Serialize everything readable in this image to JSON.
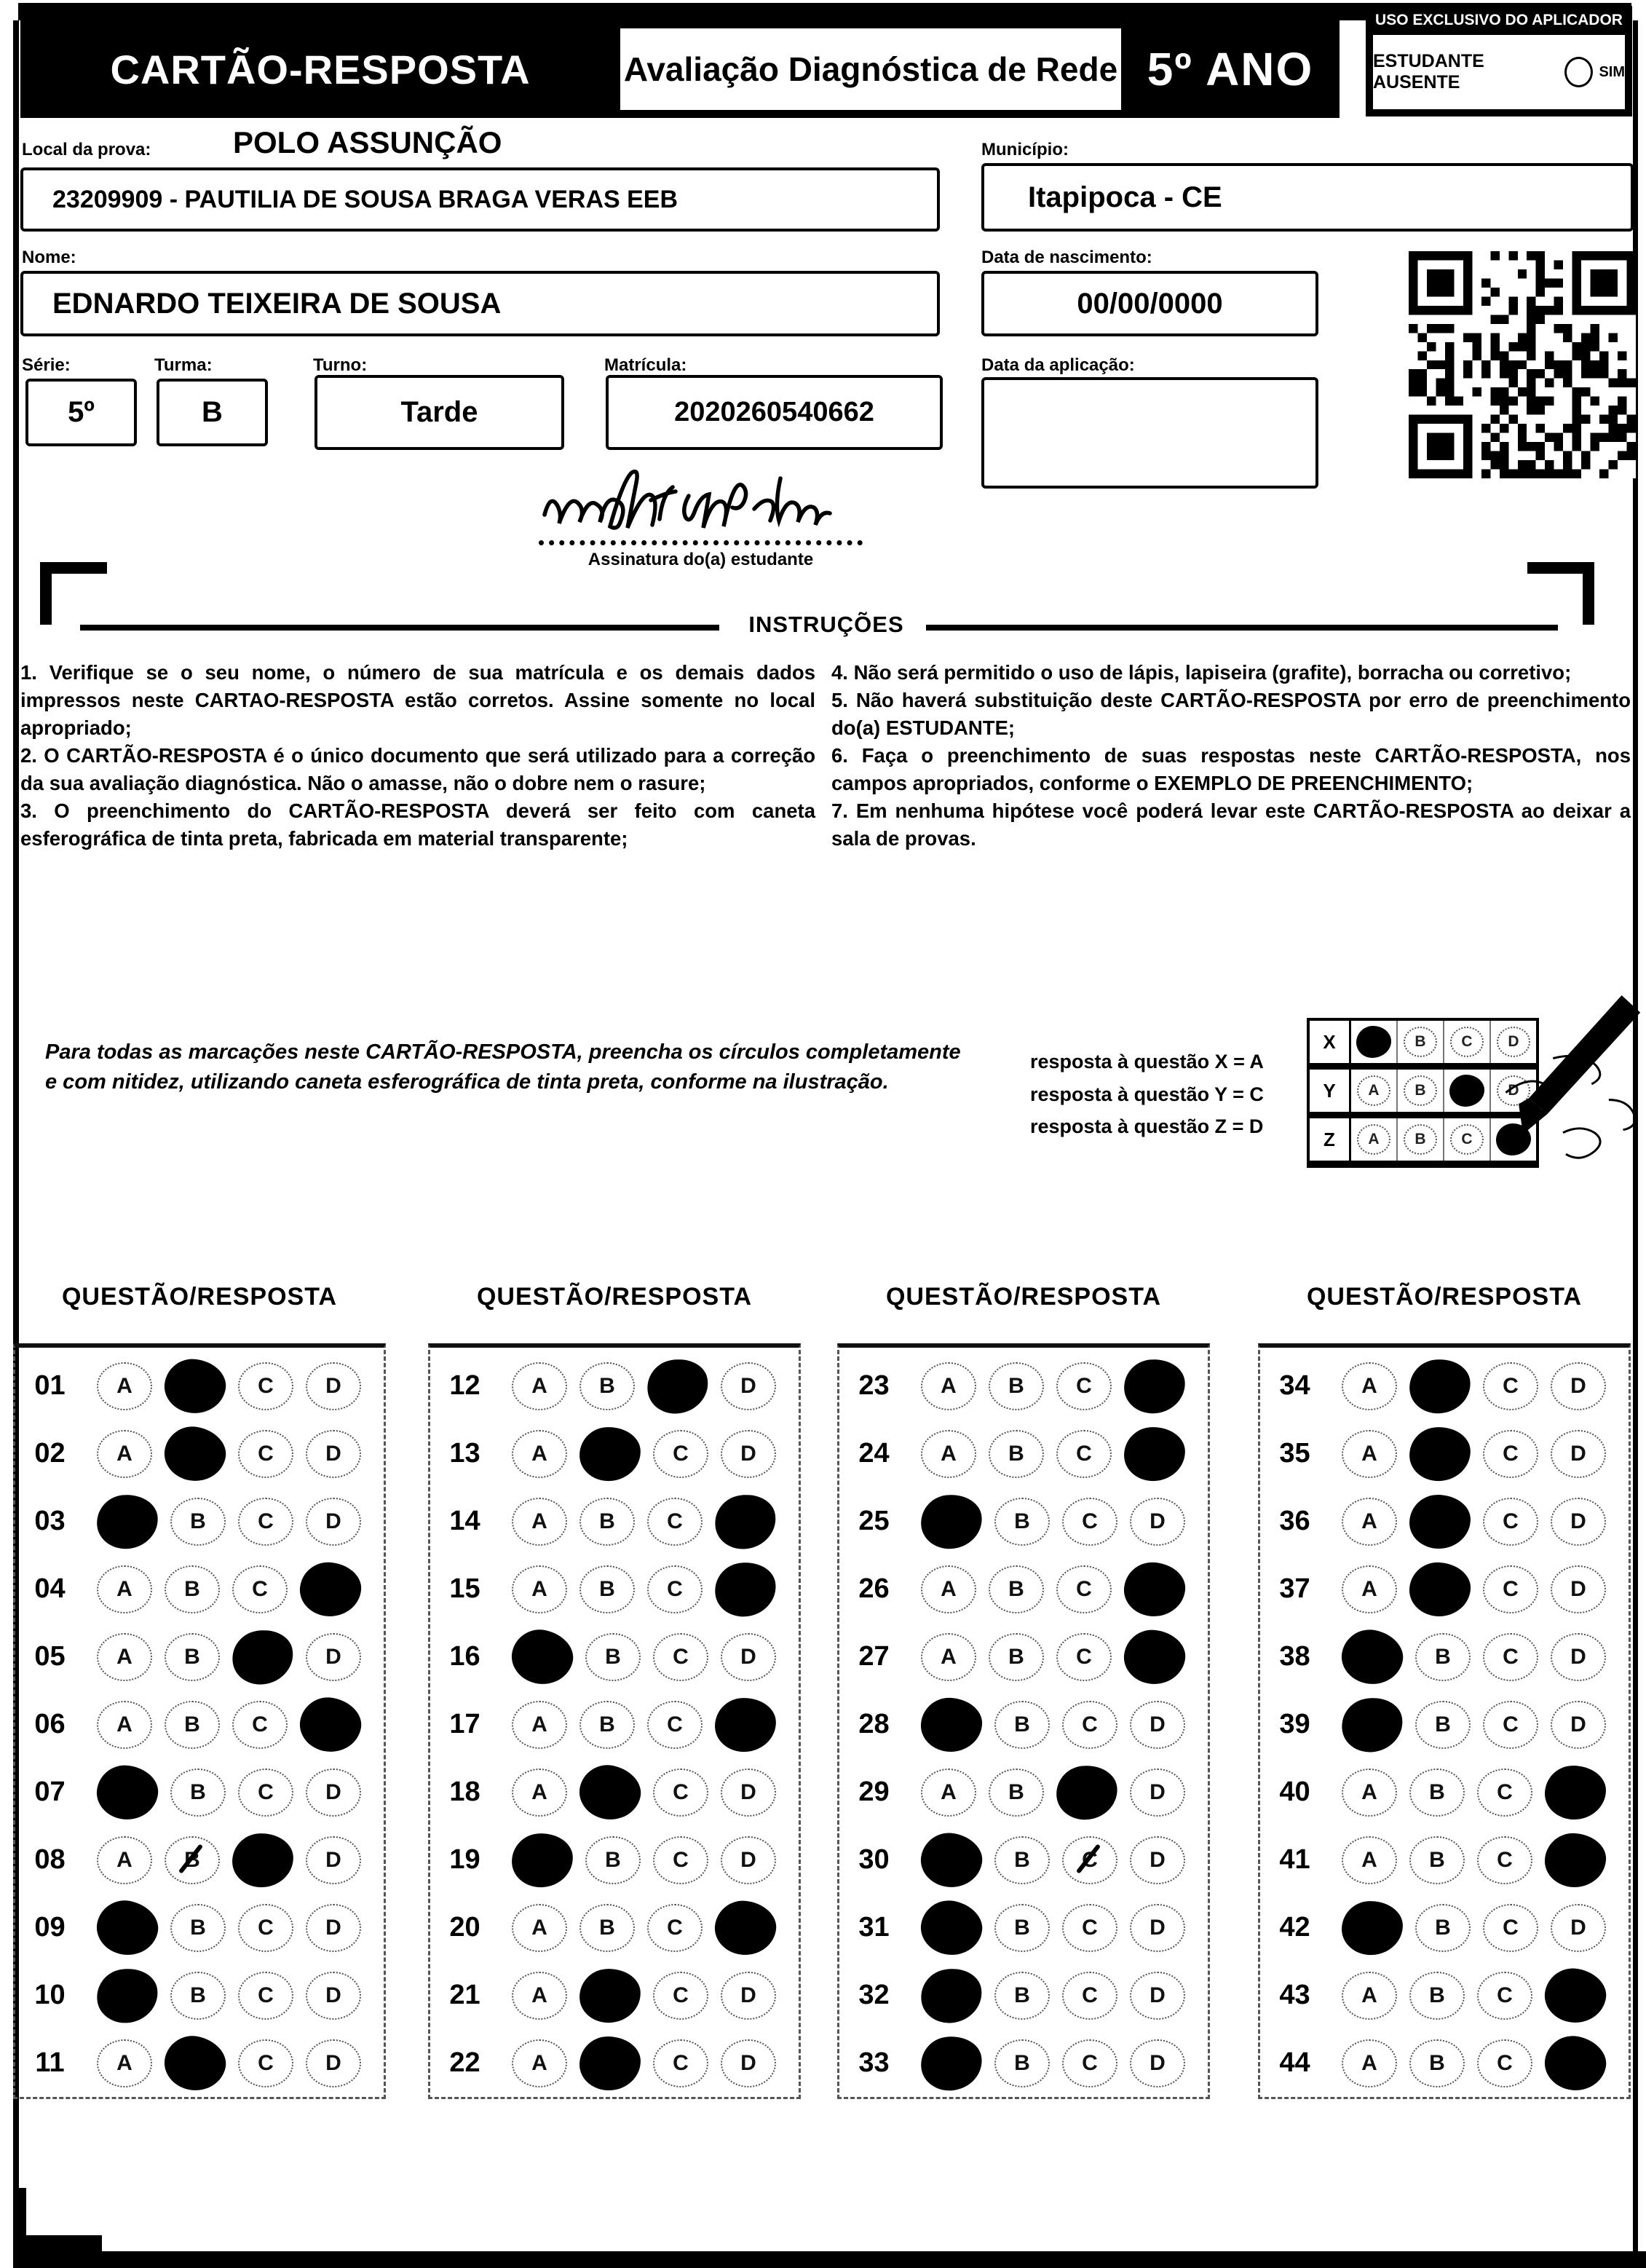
{
  "header": {
    "card_title": "CARTÃO-RESPOSTA",
    "exam_title": "Avaliação Diagnóstica de Rede",
    "grade": "5º ANO",
    "applicator_box_title": "USO EXCLUSIVO DO APLICADOR",
    "absent_label": "ESTUDANTE AUSENTE",
    "absent_option": "SIM"
  },
  "student": {
    "local_label": "Local da prova:",
    "local_value": "POLO ASSUNÇÃO",
    "school_value": "23209909 - PAUTILIA DE SOUSA BRAGA VERAS EEB",
    "municipio_label": "Município:",
    "municipio_value": "Itapipoca - CE",
    "nome_label": "Nome:",
    "nome_value": "EDNARDO TEIXEIRA DE SOUSA",
    "nascimento_label": "Data de nascimento:",
    "nascimento_value": "00/00/0000",
    "serie_label": "Série:",
    "serie_value": "5º",
    "turma_label": "Turma:",
    "turma_value": "B",
    "turno_label": "Turno:",
    "turno_value": "Tarde",
    "matricula_label": "Matrícula:",
    "matricula_value": "2020260540662",
    "aplicacao_label": "Data da aplicação:",
    "aplicacao_value": "",
    "assinatura_label": "Assinatura do(a) estudante"
  },
  "instructions": {
    "title": "INSTRUÇÕES",
    "left_items": [
      "1. Verifique se o seu nome, o número de sua matrícula e os demais dados impressos neste CARTAO-RESPOSTA estão corretos. Assine somente no local apropriado;",
      "2. O CARTÃO-RESPOSTA é o único documento que será utilizado para a correção da sua avaliação diagnóstica. Não o amasse, não o dobre nem o rasure;",
      "3. O preenchimento do CARTÃO-RESPOSTA deverá ser feito com caneta esferográfica de tinta preta, fabricada em material transparente;"
    ],
    "right_items": [
      "4. Não será permitido o uso de lápis, lapiseira (grafite), borracha ou corretivo;",
      "5. Não haverá substituição deste CARTÃO-RESPOSTA por erro de preenchimento do(a) ESTUDANTE;",
      "6. Faça o preenchimento de suas respostas neste CARTÃO-RESPOSTA, nos campos apropriados, conforme o EXEMPLO DE PREENCHIMENTO;",
      "7. Em nenhuma hipótese você poderá levar este CARTÃO-RESPOSTA ao deixar a sala de provas."
    ]
  },
  "example": {
    "text": "Para todas as marcações neste CARTÃO-RESPOSTA, preencha os círculos completamente e com nitidez, utilizando caneta esferográfica de tinta preta, conforme na ilustração.",
    "legend": [
      "resposta à questão X = A",
      "resposta à questão Y = C",
      "resposta à questão Z = D"
    ],
    "options": [
      "A",
      "B",
      "C",
      "D"
    ],
    "grid": [
      {
        "label": "X",
        "filled": "A"
      },
      {
        "label": "Y",
        "filled": "C"
      },
      {
        "label": "Z",
        "filled": "D"
      }
    ]
  },
  "answers": {
    "column_header": "QUESTÃO/RESPOSTA",
    "options": [
      "A",
      "B",
      "C",
      "D"
    ],
    "columns": [
      [
        {
          "n": "01",
          "marked": "B"
        },
        {
          "n": "02",
          "marked": "B"
        },
        {
          "n": "03",
          "marked": "A"
        },
        {
          "n": "04",
          "marked": "D"
        },
        {
          "n": "05",
          "marked": "C"
        },
        {
          "n": "06",
          "marked": "D"
        },
        {
          "n": "07",
          "marked": "A"
        },
        {
          "n": "08",
          "marked": "C",
          "scratched": "B"
        },
        {
          "n": "09",
          "marked": "A"
        },
        {
          "n": "10",
          "marked": "A"
        },
        {
          "n": "11",
          "marked": "B"
        }
      ],
      [
        {
          "n": "12",
          "marked": "C"
        },
        {
          "n": "13",
          "marked": "B"
        },
        {
          "n": "14",
          "marked": "D"
        },
        {
          "n": "15",
          "marked": "D"
        },
        {
          "n": "16",
          "marked": "A"
        },
        {
          "n": "17",
          "marked": "D"
        },
        {
          "n": "18",
          "marked": "B"
        },
        {
          "n": "19",
          "marked": "A"
        },
        {
          "n": "20",
          "marked": "D"
        },
        {
          "n": "21",
          "marked": "B"
        },
        {
          "n": "22",
          "marked": "B"
        }
      ],
      [
        {
          "n": "23",
          "marked": "D"
        },
        {
          "n": "24",
          "marked": "D"
        },
        {
          "n": "25",
          "marked": "A"
        },
        {
          "n": "26",
          "marked": "D"
        },
        {
          "n": "27",
          "marked": "D"
        },
        {
          "n": "28",
          "marked": "A"
        },
        {
          "n": "29",
          "marked": "C"
        },
        {
          "n": "30",
          "marked": "A",
          "scratched": "C"
        },
        {
          "n": "31",
          "marked": "A"
        },
        {
          "n": "32",
          "marked": "A"
        },
        {
          "n": "33",
          "marked": "A"
        }
      ],
      [
        {
          "n": "34",
          "marked": "B"
        },
        {
          "n": "35",
          "marked": "B"
        },
        {
          "n": "36",
          "marked": "B"
        },
        {
          "n": "37",
          "marked": "B"
        },
        {
          "n": "38",
          "marked": "A"
        },
        {
          "n": "39",
          "marked": "A"
        },
        {
          "n": "40",
          "marked": "D"
        },
        {
          "n": "41",
          "marked": "D"
        },
        {
          "n": "42",
          "marked": "A"
        },
        {
          "n": "43",
          "marked": "D"
        },
        {
          "n": "44",
          "marked": "D"
        }
      ]
    ]
  }
}
